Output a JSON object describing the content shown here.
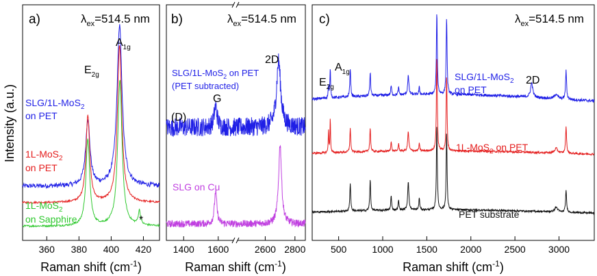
{
  "figure": {
    "ylabel": "Intensity (a.u.)",
    "xlabel_text": "Raman shift (cm",
    "xlabel_unit_sup": "-1",
    "xlabel_close": ")"
  },
  "chart_data": [
    {
      "type": "line",
      "panel_label": "a)",
      "wavelength": {
        "prefix": "λ",
        "sub": "ex",
        "value": "=514.5 nm"
      },
      "xlim": [
        345,
        430
      ],
      "xticks": [
        360,
        380,
        400,
        420
      ],
      "series": [
        {
          "name": "SLG/1L-MoS2 on PET",
          "label_lines": [
            "SLG/1L-MoS",
            "on PET"
          ],
          "label_sub": "2",
          "color": "#1f1fe6",
          "baseline": 0.23,
          "noise": 0.01,
          "peaks": [
            [
              385.5,
              0.28,
              1.6
            ],
            [
              405.2,
              0.68,
              1.9
            ]
          ]
        },
        {
          "name": "1L-MoS2 on PET",
          "label_lines": [
            "1L-MoS",
            "on PET"
          ],
          "label_sub": "2",
          "color": "#e41c1c",
          "baseline": 0.16,
          "noise": 0.004,
          "peaks": [
            [
              385.5,
              0.37,
              1.4
            ],
            [
              405.2,
              0.67,
              1.6
            ]
          ]
        },
        {
          "name": "1L-MoS2 on Sapphire",
          "label_lines": [
            "1L-MoS",
            "on Sapphire"
          ],
          "label_sub": "2",
          "color": "#2ec82e",
          "baseline": 0.06,
          "noise": 0.004,
          "peaks": [
            [
              385.5,
              0.37,
              1.4
            ],
            [
              405.4,
              0.62,
              1.6
            ],
            [
              417.5,
              0.06,
              0.8
            ]
          ]
        }
      ],
      "annotations": [
        {
          "text": "E",
          "sub": "2g",
          "x": 385.5
        },
        {
          "text": "A",
          "sub": "1g",
          "x": 405.2
        },
        {
          "text": "*",
          "x": 417.5
        }
      ]
    },
    {
      "type": "line",
      "panel_label": "b)",
      "wavelength": {
        "prefix": "λ",
        "sub": "ex",
        "value": "=514.5 nm"
      },
      "xticks": [
        1400,
        1600,
        2600,
        2800
      ],
      "break": {
        "left": [
          1300,
          1700
        ],
        "right": [
          2400,
          2870
        ]
      },
      "series": [
        {
          "name": "SLG/1L-MoS2 on PET (PET subtracted)",
          "label_lines": [
            "SLG/1L-MoS",
            " on PET",
            "(PET subtracted)"
          ],
          "label_sub": "2",
          "color": "#1f1fe6",
          "baseline": 0.48,
          "noise": 0.04,
          "peaks": [
            [
              1585,
              0.09,
              10
            ],
            [
              2690,
              0.28,
              17
            ]
          ]
        },
        {
          "name": "SLG on Cu",
          "label_lines": [
            "SLG on Cu"
          ],
          "color": "#c040e0",
          "baseline": 0.07,
          "noise": 0.015,
          "peaks": [
            [
              1585,
              0.14,
              8
            ],
            [
              2700,
              0.34,
              12
            ]
          ]
        }
      ],
      "annotations": [
        {
          "text": "2D",
          "x": 2690
        },
        {
          "text": "G",
          "x": 1585
        },
        {
          "text": "(D)",
          "x": 1350
        }
      ]
    },
    {
      "type": "line",
      "panel_label": "c)",
      "wavelength": {
        "prefix": "λ",
        "sub": "ex",
        "value": "=514.5 nm"
      },
      "xlim": [
        200,
        3400
      ],
      "xticks": [
        500,
        1000,
        1500,
        2000,
        2500,
        3000
      ],
      "series": [
        {
          "name": "SLG/1L-MoS2 on PET",
          "label_lines": [
            "SLG/1L-MoS",
            "on PET"
          ],
          "label_sub": "2",
          "color": "#1f1fe6",
          "baseline": 0.6,
          "noise": 0.006,
          "peaks": [
            [
              385,
              0.05,
              5
            ],
            [
              405,
              0.12,
              5
            ],
            [
              632,
              0.12,
              6
            ],
            [
              858,
              0.1,
              6
            ],
            [
              1096,
              0.04,
              6
            ],
            [
              1180,
              0.03,
              6
            ],
            [
              1290,
              0.08,
              8
            ],
            [
              1415,
              0.03,
              6
            ],
            [
              1614,
              0.35,
              6
            ],
            [
              1725,
              0.33,
              6
            ],
            [
              2690,
              0.06,
              15
            ],
            [
              2968,
              0.02,
              20
            ],
            [
              3080,
              0.12,
              7
            ]
          ]
        },
        {
          "name": "1L-MoS2 on PET",
          "label_lines": [
            "1L-MoS",
            " on PET"
          ],
          "label_sub": "2",
          "color": "#e41c1c",
          "baseline": 0.37,
          "noise": 0.004,
          "peaks": [
            [
              385,
              0.1,
              4
            ],
            [
              405,
              0.15,
              4
            ],
            [
              632,
              0.1,
              6
            ],
            [
              858,
              0.1,
              6
            ],
            [
              1096,
              0.04,
              6
            ],
            [
              1180,
              0.03,
              6
            ],
            [
              1290,
              0.08,
              8
            ],
            [
              1415,
              0.03,
              6
            ],
            [
              1614,
              0.4,
              6
            ],
            [
              1725,
              0.32,
              6
            ],
            [
              2968,
              0.02,
              20
            ],
            [
              3080,
              0.11,
              7
            ]
          ]
        },
        {
          "name": "PET substrate",
          "label_lines": [
            "PET substrate"
          ],
          "color": "#111111",
          "baseline": 0.12,
          "noise": 0.004,
          "peaks": [
            [
              632,
              0.12,
              6
            ],
            [
              858,
              0.13,
              6
            ],
            [
              1096,
              0.06,
              6
            ],
            [
              1180,
              0.04,
              6
            ],
            [
              1290,
              0.12,
              8
            ],
            [
              1415,
              0.05,
              6
            ],
            [
              1614,
              0.36,
              6
            ],
            [
              1725,
              0.33,
              6
            ],
            [
              2968,
              0.02,
              20
            ],
            [
              3080,
              0.09,
              7
            ]
          ]
        }
      ],
      "annotations": [
        {
          "text": "E",
          "sub": "2g",
          "x": 385
        },
        {
          "text": "A",
          "sub": "1g",
          "x": 405
        },
        {
          "text": "2D",
          "x": 2690
        }
      ]
    }
  ]
}
